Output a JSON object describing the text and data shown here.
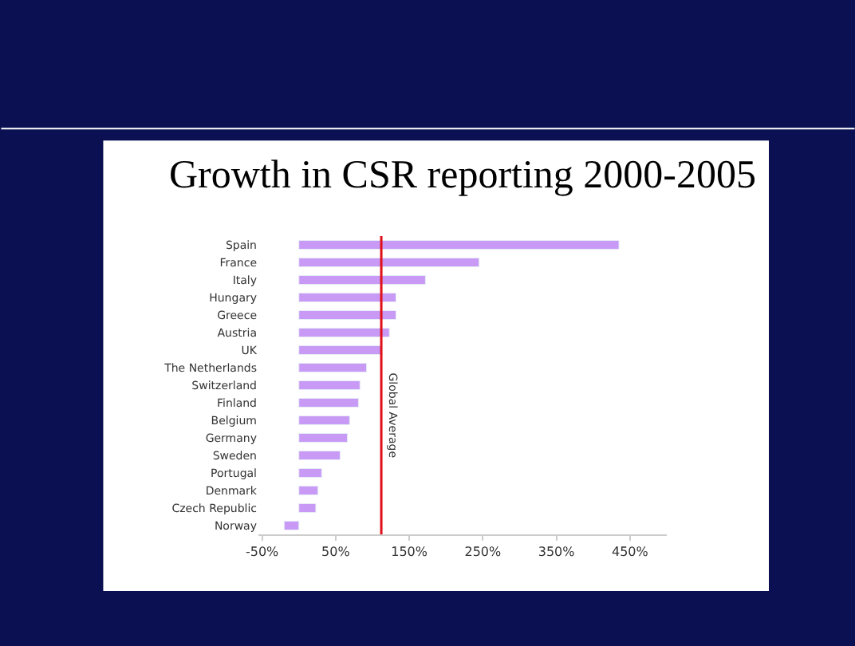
{
  "chart_data": {
    "type": "bar",
    "orientation": "horizontal",
    "title": "Growth in CSR reporting 2000-2005",
    "categories": [
      "Spain",
      "France",
      "Italy",
      "Hungary",
      "Greece",
      "Austria",
      "UK",
      "The Netherlands",
      "Switzerland",
      "Finland",
      "Belgium",
      "Germany",
      "Sweden",
      "Portugal",
      "Denmark",
      "Czech Republic",
      "Norway"
    ],
    "values": [
      435,
      245,
      172,
      132,
      132,
      123,
      112,
      92,
      83,
      81,
      69,
      66,
      56,
      31,
      26,
      23,
      -20
    ],
    "color": "#c89af5",
    "xlim": [
      -55,
      500
    ],
    "xticks": [
      {
        "value": -50,
        "label": "-50%"
      },
      {
        "value": 50,
        "label": "50%"
      },
      {
        "value": 150,
        "label": "150%"
      },
      {
        "value": 250,
        "label": "250%"
      },
      {
        "value": 350,
        "label": "350%"
      },
      {
        "value": 450,
        "label": "450%"
      }
    ],
    "ref_lines": [
      {
        "axis": "x",
        "value": 112,
        "label": "Global Average",
        "color": "#e0101a"
      }
    ],
    "line_style": "solid"
  }
}
